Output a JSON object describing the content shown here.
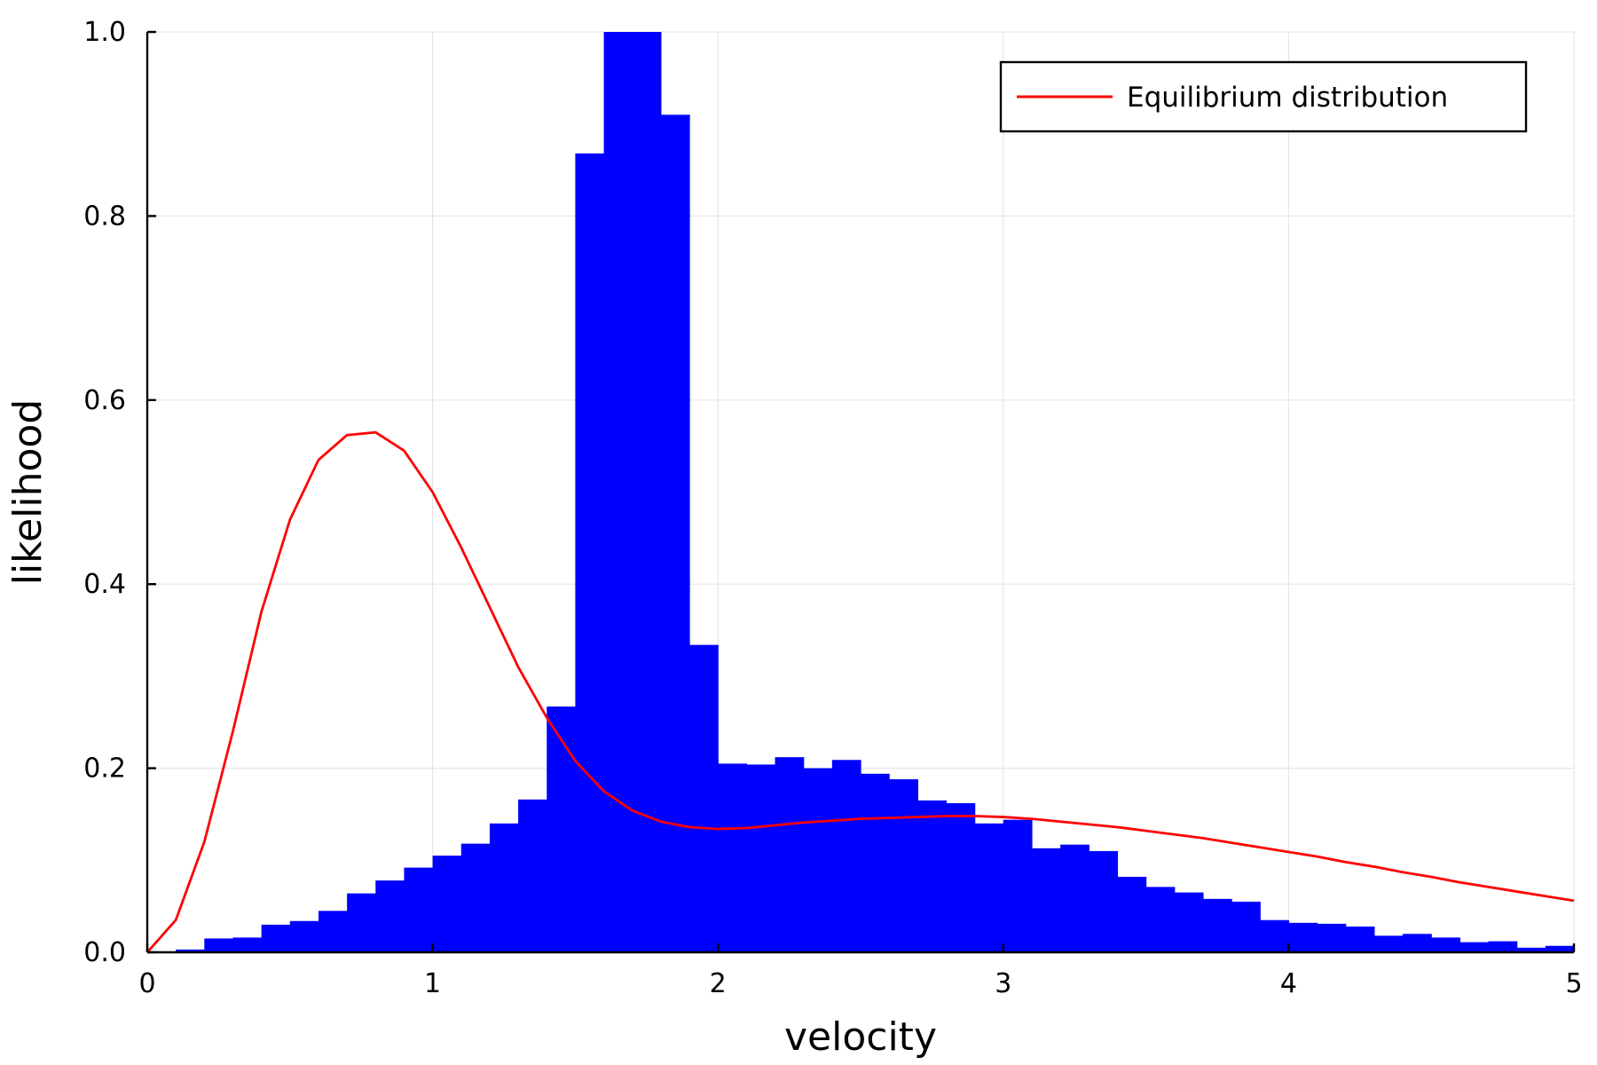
{
  "chart_data": {
    "type": "bar",
    "xlabel": "velocity",
    "ylabel": "likelihood",
    "xlim": [
      0,
      5
    ],
    "ylim": [
      0,
      1
    ],
    "x_ticks": [
      0,
      1,
      2,
      3,
      4,
      5
    ],
    "x_tick_labels": [
      "0",
      "1",
      "2",
      "3",
      "4",
      "5"
    ],
    "y_ticks": [
      0,
      0.2,
      0.4,
      0.6,
      0.8,
      1.0
    ],
    "y_tick_labels": [
      "0.0",
      "0.2",
      "0.4",
      "0.6",
      "0.8",
      "1.0"
    ],
    "grid": true,
    "legend": {
      "placement": "top-right",
      "entries": [
        {
          "label": "Equilibrium distribution",
          "color": "#ff0000",
          "kind": "line"
        }
      ]
    },
    "histogram": {
      "color": "#0000ff",
      "bin_width": 0.1,
      "bin_start": 0.0,
      "values": [
        0.0,
        0.003,
        0.015,
        0.016,
        0.03,
        0.034,
        0.045,
        0.064,
        0.078,
        0.092,
        0.105,
        0.118,
        0.14,
        0.166,
        0.267,
        0.868,
        1.0,
        1.0,
        0.91,
        0.334,
        0.205,
        0.204,
        0.212,
        0.2,
        0.209,
        0.194,
        0.188,
        0.165,
        0.162,
        0.14,
        0.144,
        0.113,
        0.117,
        0.11,
        0.082,
        0.071,
        0.065,
        0.058,
        0.055,
        0.035,
        0.032,
        0.031,
        0.028,
        0.018,
        0.02,
        0.016,
        0.011,
        0.012,
        0.005,
        0.007
      ]
    },
    "series": [
      {
        "name": "Equilibrium distribution",
        "color": "#ff0000",
        "x": [
          0.0,
          0.1,
          0.2,
          0.3,
          0.4,
          0.5,
          0.6,
          0.7,
          0.8,
          0.9,
          1.0,
          1.1,
          1.2,
          1.3,
          1.4,
          1.5,
          1.6,
          1.7,
          1.8,
          1.9,
          2.0,
          2.1,
          2.2,
          2.3,
          2.4,
          2.5,
          2.6,
          2.7,
          2.8,
          2.9,
          3.0,
          3.1,
          3.2,
          3.3,
          3.4,
          3.5,
          3.6,
          3.7,
          3.8,
          3.9,
          4.0,
          4.1,
          4.2,
          4.3,
          4.4,
          4.5,
          4.6,
          4.7,
          4.8,
          4.9,
          5.0
        ],
        "y": [
          0.0,
          0.035,
          0.12,
          0.24,
          0.37,
          0.47,
          0.535,
          0.562,
          0.565,
          0.545,
          0.5,
          0.44,
          0.375,
          0.31,
          0.255,
          0.208,
          0.175,
          0.154,
          0.142,
          0.136,
          0.134,
          0.135,
          0.138,
          0.141,
          0.143,
          0.145,
          0.146,
          0.147,
          0.148,
          0.148,
          0.147,
          0.145,
          0.142,
          0.139,
          0.136,
          0.132,
          0.128,
          0.124,
          0.119,
          0.114,
          0.109,
          0.104,
          0.098,
          0.093,
          0.087,
          0.082,
          0.076,
          0.071,
          0.066,
          0.061,
          0.056
        ]
      }
    ]
  }
}
